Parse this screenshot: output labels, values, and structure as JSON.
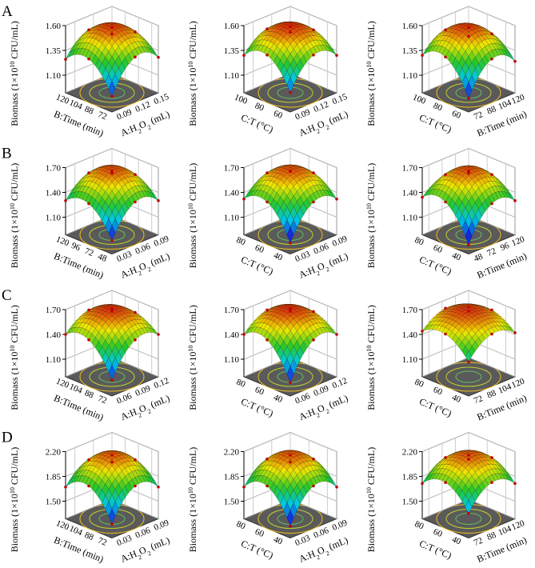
{
  "panel_labels": [
    "A",
    "B",
    "C",
    "D"
  ],
  "chart_data": [
    {
      "type": "surface",
      "z_label": [
        "Biomass (1×10",
        "10",
        " CFU/mL)"
      ],
      "x_label": [
        "B:Time (min)"
      ],
      "y_label": [
        "A:H",
        "2",
        "O",
        "2",
        " (mL)"
      ],
      "xlim": [
        64,
        120
      ],
      "xticks": [
        72,
        88,
        104,
        120
      ],
      "ylim": [
        0.075,
        0.15
      ],
      "yticks": [
        0.09,
        0.12,
        0.15
      ],
      "zlim": [
        1.1,
        1.6
      ],
      "zticks": [
        {
          "value": 1.1,
          "label": "1.10"
        },
        1.35,
        {
          "value": 1.6,
          "label": "1.60"
        }
      ],
      "z": [
        [
          1.08,
          1.38,
          1.28
        ],
        [
          1.36,
          1.58,
          1.44
        ],
        [
          1.26,
          1.46,
          1.32
        ]
      ]
    },
    {
      "type": "surface",
      "z_label": [
        "Biomass (1×10",
        "10",
        " CFU/mL)"
      ],
      "x_label": [
        "C:T (°C)"
      ],
      "y_label": [
        "A:H",
        "2",
        "O",
        "2",
        " (mL)"
      ],
      "xlim": [
        50,
        100
      ],
      "xticks": [
        60,
        80,
        100
      ],
      "ylim": [
        0.075,
        0.15
      ],
      "yticks": [
        0.09,
        0.12,
        0.15
      ],
      "zlim": [
        1.1,
        1.6
      ],
      "zticks": [
        {
          "value": 1.1,
          "label": "1.10"
        },
        1.35,
        {
          "value": 1.6,
          "label": "1.60"
        }
      ],
      "z": [
        [
          1.12,
          1.4,
          1.3
        ],
        [
          1.4,
          1.59,
          1.46
        ],
        [
          1.3,
          1.47,
          1.34
        ]
      ]
    },
    {
      "type": "surface",
      "z_label": [
        "Biomass (1×10",
        "10",
        " CFU/mL)"
      ],
      "x_label": [
        "C:T (°C)"
      ],
      "y_label": [
        "B:Time (min)"
      ],
      "xlim": [
        50,
        100
      ],
      "xticks": [
        60,
        80,
        100
      ],
      "ylim": [
        64,
        120
      ],
      "yticks": [
        72,
        88,
        104,
        120
      ],
      "zlim": [
        1.1,
        1.6
      ],
      "zticks": [
        {
          "value": 1.1,
          "label": "1.10"
        },
        1.35,
        {
          "value": 1.6,
          "label": "1.60"
        }
      ],
      "z": [
        [
          1.06,
          1.36,
          1.24
        ],
        [
          1.38,
          1.58,
          1.42
        ],
        [
          1.3,
          1.46,
          1.3
        ]
      ]
    },
    {
      "type": "surface",
      "z_label": [
        "Biomass (1×10",
        "10",
        " CFU/mL)"
      ],
      "x_label": [
        "B:Time (min)"
      ],
      "y_label": [
        "A:H",
        "2",
        "O",
        "2",
        " (mL)"
      ],
      "xlim": [
        36,
        120
      ],
      "xticks": [
        48,
        72,
        96,
        120
      ],
      "ylim": [
        0.015,
        0.09
      ],
      "yticks": [
        0.03,
        0.06,
        0.09
      ],
      "zlim": [
        1.1,
        1.7
      ],
      "zticks": [
        {
          "value": 1.1,
          "label": "1.10"
        },
        {
          "value": 1.4,
          "label": "1.40"
        },
        {
          "value": 1.7,
          "label": "1.70"
        }
      ],
      "z": [
        [
          1.05,
          1.4,
          1.3
        ],
        [
          1.38,
          1.66,
          1.5
        ],
        [
          1.3,
          1.52,
          1.4
        ]
      ]
    },
    {
      "type": "surface",
      "z_label": [
        "Biomass (1×10",
        "10",
        " CFU/mL)"
      ],
      "x_label": [
        "C:T (°C)"
      ],
      "y_label": [
        "A:H",
        "2",
        "O",
        "2",
        " (mL)"
      ],
      "xlim": [
        30,
        80
      ],
      "xticks": [
        40,
        60,
        80
      ],
      "ylim": [
        0.015,
        0.09
      ],
      "yticks": [
        0.03,
        0.06,
        0.09
      ],
      "zlim": [
        1.1,
        1.7
      ],
      "zticks": [
        {
          "value": 1.1,
          "label": "1.10"
        },
        {
          "value": 1.4,
          "label": "1.40"
        },
        {
          "value": 1.7,
          "label": "1.70"
        }
      ],
      "z": [
        [
          1.02,
          1.4,
          1.32
        ],
        [
          1.4,
          1.66,
          1.52
        ],
        [
          1.32,
          1.52,
          1.42
        ]
      ]
    },
    {
      "type": "surface",
      "z_label": [
        "Biomass (1×10",
        "10",
        " CFU/mL)"
      ],
      "x_label": [
        "C:T (°C)"
      ],
      "y_label": [
        "B:Time (min)"
      ],
      "xlim": [
        30,
        80
      ],
      "xticks": [
        40,
        60,
        80
      ],
      "ylim": [
        36,
        120
      ],
      "yticks": [
        48,
        72,
        96,
        120
      ],
      "zlim": [
        1.1,
        1.7
      ],
      "zticks": [
        {
          "value": 1.1,
          "label": "1.10"
        },
        {
          "value": 1.4,
          "label": "1.40"
        },
        {
          "value": 1.7,
          "label": "1.70"
        }
      ],
      "z": [
        [
          1.0,
          1.38,
          1.3
        ],
        [
          1.4,
          1.66,
          1.5
        ],
        [
          1.34,
          1.5,
          1.4
        ]
      ]
    },
    {
      "type": "surface",
      "z_label": [
        "Biomass (1×10",
        "10",
        " CFU/mL)"
      ],
      "x_label": [
        "B:Time (min)"
      ],
      "y_label": [
        "A:H",
        "2",
        "O",
        "2",
        " (mL)"
      ],
      "xlim": [
        64,
        120
      ],
      "xticks": [
        72,
        88,
        104,
        120
      ],
      "ylim": [
        0.045,
        0.12
      ],
      "yticks": [
        0.06,
        0.09,
        0.12
      ],
      "zlim": [
        1.1,
        1.7
      ],
      "zticks": [
        {
          "value": 1.1,
          "label": "1.10"
        },
        {
          "value": 1.4,
          "label": "1.40"
        },
        {
          "value": 1.7,
          "label": "1.70"
        }
      ],
      "z": [
        [
          1.08,
          1.45,
          1.4
        ],
        [
          1.45,
          1.68,
          1.55
        ],
        [
          1.4,
          1.58,
          1.48
        ]
      ]
    },
    {
      "type": "surface",
      "z_label": [
        "Biomass (1×10",
        "10",
        " CFU/mL)"
      ],
      "x_label": [
        "C:T (°C)"
      ],
      "y_label": [
        "A:H",
        "2",
        "O",
        "2",
        " (mL)"
      ],
      "xlim": [
        30,
        80
      ],
      "xticks": [
        40,
        60,
        80
      ],
      "ylim": [
        0.045,
        0.12
      ],
      "yticks": [
        0.06,
        0.09,
        0.12
      ],
      "zlim": [
        1.1,
        1.7
      ],
      "zticks": [
        {
          "value": 1.1,
          "label": "1.10"
        },
        {
          "value": 1.4,
          "label": "1.40"
        },
        {
          "value": 1.7,
          "label": "1.70"
        }
      ],
      "z": [
        [
          1.05,
          1.45,
          1.4
        ],
        [
          1.45,
          1.68,
          1.56
        ],
        [
          1.4,
          1.58,
          1.48
        ]
      ]
    },
    {
      "type": "surface",
      "z_label": [
        "Biomass (1×10",
        "10",
        " CFU/mL)"
      ],
      "x_label": [
        "C:T (°C)"
      ],
      "y_label": [
        "B:Time (min)"
      ],
      "xlim": [
        30,
        80
      ],
      "xticks": [
        40,
        60,
        80
      ],
      "ylim": [
        64,
        120
      ],
      "yticks": [
        72,
        88,
        104,
        120
      ],
      "zlim": [
        1.1,
        1.7
      ],
      "zticks": [
        {
          "value": 1.1,
          "label": "1.10"
        },
        {
          "value": 1.4,
          "label": "1.40"
        },
        {
          "value": 1.7,
          "label": "1.70"
        }
      ],
      "z": [
        [
          1.3,
          1.52,
          1.42
        ],
        [
          1.52,
          1.68,
          1.58
        ],
        [
          1.44,
          1.6,
          1.5
        ]
      ]
    },
    {
      "type": "surface",
      "z_label": [
        "Biomass (1×10",
        "10",
        " CFU/mL)"
      ],
      "x_label": [
        "B:Time (min)"
      ],
      "y_label": [
        "A:H",
        "2",
        "O",
        "2",
        " (mL)"
      ],
      "xlim": [
        64,
        120
      ],
      "xticks": [
        72,
        88,
        104,
        120
      ],
      "ylim": [
        0.015,
        0.09
      ],
      "yticks": [
        0.03,
        0.06,
        0.09
      ],
      "zlim": [
        1.5,
        2.2
      ],
      "zticks": [
        {
          "value": 1.5,
          "label": "1.50"
        },
        1.85,
        {
          "value": 2.2,
          "label": "2.20"
        }
      ],
      "z": [
        [
          1.45,
          1.85,
          1.7
        ],
        [
          1.85,
          2.15,
          1.95
        ],
        [
          1.7,
          1.95,
          1.78
        ]
      ]
    },
    {
      "type": "surface",
      "z_label": [
        "Biomass (1×10",
        "10",
        " CFU/mL)"
      ],
      "x_label": [
        "C:T (°C)"
      ],
      "y_label": [
        "A:H",
        "2",
        "O",
        "2",
        " (mL)"
      ],
      "xlim": [
        30,
        80
      ],
      "xticks": [
        40,
        60,
        80
      ],
      "ylim": [
        0.015,
        0.09
      ],
      "yticks": [
        0.03,
        0.06,
        0.09
      ],
      "zlim": [
        1.5,
        2.2
      ],
      "zticks": [
        {
          "value": 1.5,
          "label": "1.50"
        },
        1.85,
        {
          "value": 2.2,
          "label": "2.20"
        }
      ],
      "z": [
        [
          1.42,
          1.85,
          1.7
        ],
        [
          1.85,
          2.15,
          1.96
        ],
        [
          1.7,
          1.96,
          1.78
        ]
      ]
    },
    {
      "type": "surface",
      "z_label": [
        "Biomass (1×10",
        "10",
        " CFU/mL)"
      ],
      "x_label": [
        "C:T (°C)"
      ],
      "y_label": [
        "B:Time (min)"
      ],
      "xlim": [
        30,
        80
      ],
      "xticks": [
        40,
        60,
        80
      ],
      "ylim": [
        64,
        120
      ],
      "yticks": [
        72,
        88,
        104,
        120
      ],
      "zlim": [
        1.5,
        2.2
      ],
      "zticks": [
        {
          "value": 1.5,
          "label": "1.50"
        },
        1.85,
        {
          "value": 2.2,
          "label": "2.20"
        }
      ],
      "z": [
        [
          1.6,
          1.9,
          1.75
        ],
        [
          1.9,
          2.15,
          1.98
        ],
        [
          1.75,
          1.98,
          1.82
        ]
      ]
    }
  ]
}
